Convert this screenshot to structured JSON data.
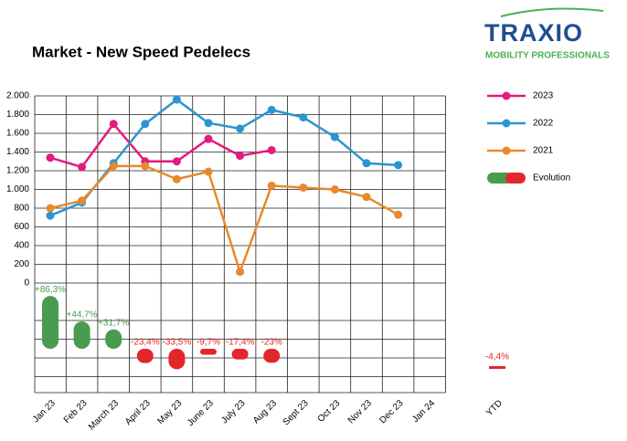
{
  "chart_data": {
    "type": "line",
    "title": "Market - New Speed Pedelecs",
    "logo": {
      "name": "TRAXIO",
      "tagline": "MOBILITY PROFESSIONALS"
    },
    "categories": [
      "Jan 23",
      "Feb 23",
      "March 23",
      "April 23",
      "May 23",
      "June 23",
      "July 23",
      "Aug 23",
      "Sept 23",
      "Oct 23",
      "Nov 23",
      "Dec 23",
      "Jan 24"
    ],
    "ylim": [
      0,
      2000
    ],
    "yticks": [
      0,
      200,
      400,
      600,
      800,
      {
        "value": 1000,
        "label": "1.000"
      },
      {
        "value": 1200,
        "label": "1.200"
      },
      {
        "value": 1400,
        "label": "1.400"
      },
      {
        "value": 1600,
        "label": "1.600"
      },
      {
        "value": 1800,
        "label": "1.800"
      },
      {
        "value": 2000,
        "label": "2.000"
      }
    ],
    "grid": true,
    "series": [
      {
        "name": "2023",
        "color": "#e5197f",
        "values": [
          1340,
          1240,
          1700,
          1300,
          1300,
          1540,
          1360,
          1420,
          null,
          null,
          null,
          null,
          null
        ]
      },
      {
        "name": "2022",
        "color": "#2b95d0",
        "values": [
          720,
          860,
          1280,
          1700,
          1960,
          1710,
          1650,
          1850,
          1770,
          1560,
          1280,
          1260,
          null
        ]
      },
      {
        "name": "2021",
        "color": "#e8892c",
        "values": [
          800,
          880,
          1250,
          1250,
          1110,
          1190,
          120,
          1040,
          1020,
          1000,
          920,
          730,
          null
        ]
      }
    ],
    "evolution": {
      "name": "Evolution",
      "positive_color": "#4a9a50",
      "negative_color": "#e3262b",
      "values": [
        86.3,
        44.7,
        31.7,
        -23.4,
        -33.5,
        -9.7,
        -17.4,
        -23
      ],
      "value_labels": [
        "+86,3%",
        "+44,7%",
        "+31,7%",
        "-23,4%",
        "-33,5%",
        "-9,7%",
        "-17,4%",
        "-23%"
      ],
      "ytd_label": "YTD",
      "ytd_value": -4.4,
      "ytd_value_label": "-4,4%"
    }
  }
}
